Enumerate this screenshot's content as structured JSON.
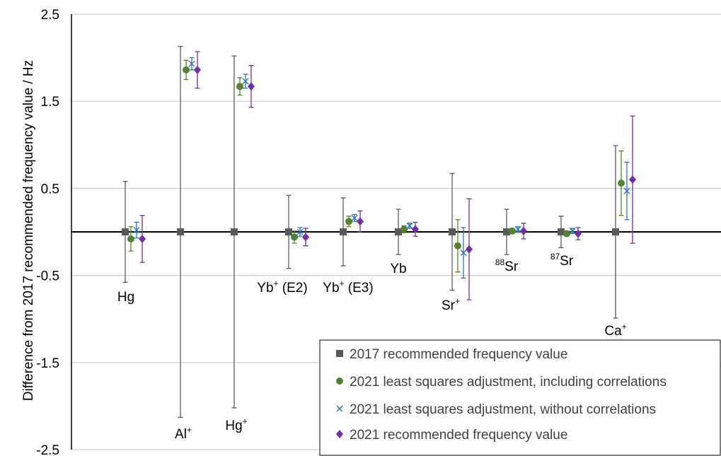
{
  "chart_data": {
    "type": "scatter",
    "title": "",
    "xlabel": "",
    "ylabel": "Difference from 2017 recommended frequency value / Hz",
    "ylim": [
      -2.5,
      2.5
    ],
    "yticks": [
      "2.5",
      "1.5",
      "0.5",
      "-0.5",
      "-1.5",
      "-2.5"
    ],
    "grid": true,
    "legend_position": "bottom-right",
    "categories": [
      {
        "base": "Hg",
        "sup": "",
        "suffix": ""
      },
      {
        "base": "Al",
        "sup": "+",
        "suffix": ""
      },
      {
        "base": "Hg",
        "sup": "+",
        "suffix": ""
      },
      {
        "base": "Yb",
        "sup": "+",
        "suffix": " (E2)"
      },
      {
        "base": "Yb",
        "sup": "+",
        "suffix": " (E3)"
      },
      {
        "base": "Yb",
        "sup": "",
        "suffix": ""
      },
      {
        "base": "Sr",
        "sup": "+",
        "suffix": ""
      },
      {
        "base": "Sr",
        "pre": "88",
        "sup": "",
        "suffix": ""
      },
      {
        "base": "Sr",
        "pre": "87",
        "sup": "",
        "suffix": ""
      },
      {
        "base": "Ca",
        "sup": "+",
        "suffix": ""
      }
    ],
    "series": [
      {
        "name": "2017 recommended frequency value",
        "color": "#595959",
        "marker": "square",
        "values": [
          0,
          0,
          0,
          0,
          0,
          0,
          0,
          0,
          0,
          0
        ],
        "errors": [
          0.58,
          2.13,
          2.02,
          0.42,
          0.39,
          0.26,
          0.67,
          0.26,
          0.18,
          0.99
        ]
      },
      {
        "name": "2021 least squares adjustment, including correlations",
        "color": "#548235",
        "marker": "circle",
        "values": [
          -0.08,
          1.86,
          1.67,
          -0.06,
          0.12,
          0.03,
          -0.16,
          0.01,
          -0.02,
          0.56
        ],
        "errors": [
          0.14,
          0.11,
          0.1,
          0.07,
          0.06,
          0.04,
          0.3,
          0.03,
          0.03,
          0.37
        ]
      },
      {
        "name": "2021 least squares adjustment, without correlations",
        "color": "#2E75B6",
        "marker": "x",
        "values": [
          0.02,
          1.93,
          1.73,
          0.0,
          0.16,
          0.07,
          -0.24,
          0.03,
          0.01,
          0.47
        ],
        "errors": [
          0.09,
          0.07,
          0.08,
          0.05,
          0.04,
          0.03,
          0.29,
          0.03,
          0.03,
          0.33
        ]
      },
      {
        "name": "2021 recommended frequency value",
        "color": "#7030A0",
        "marker": "diamond",
        "values": [
          -0.08,
          1.86,
          1.67,
          -0.06,
          0.12,
          0.03,
          -0.2,
          0.01,
          -0.02,
          0.6
        ],
        "errors": [
          0.27,
          0.21,
          0.24,
          0.1,
          0.12,
          0.08,
          0.58,
          0.09,
          0.07,
          0.73
        ]
      }
    ]
  }
}
